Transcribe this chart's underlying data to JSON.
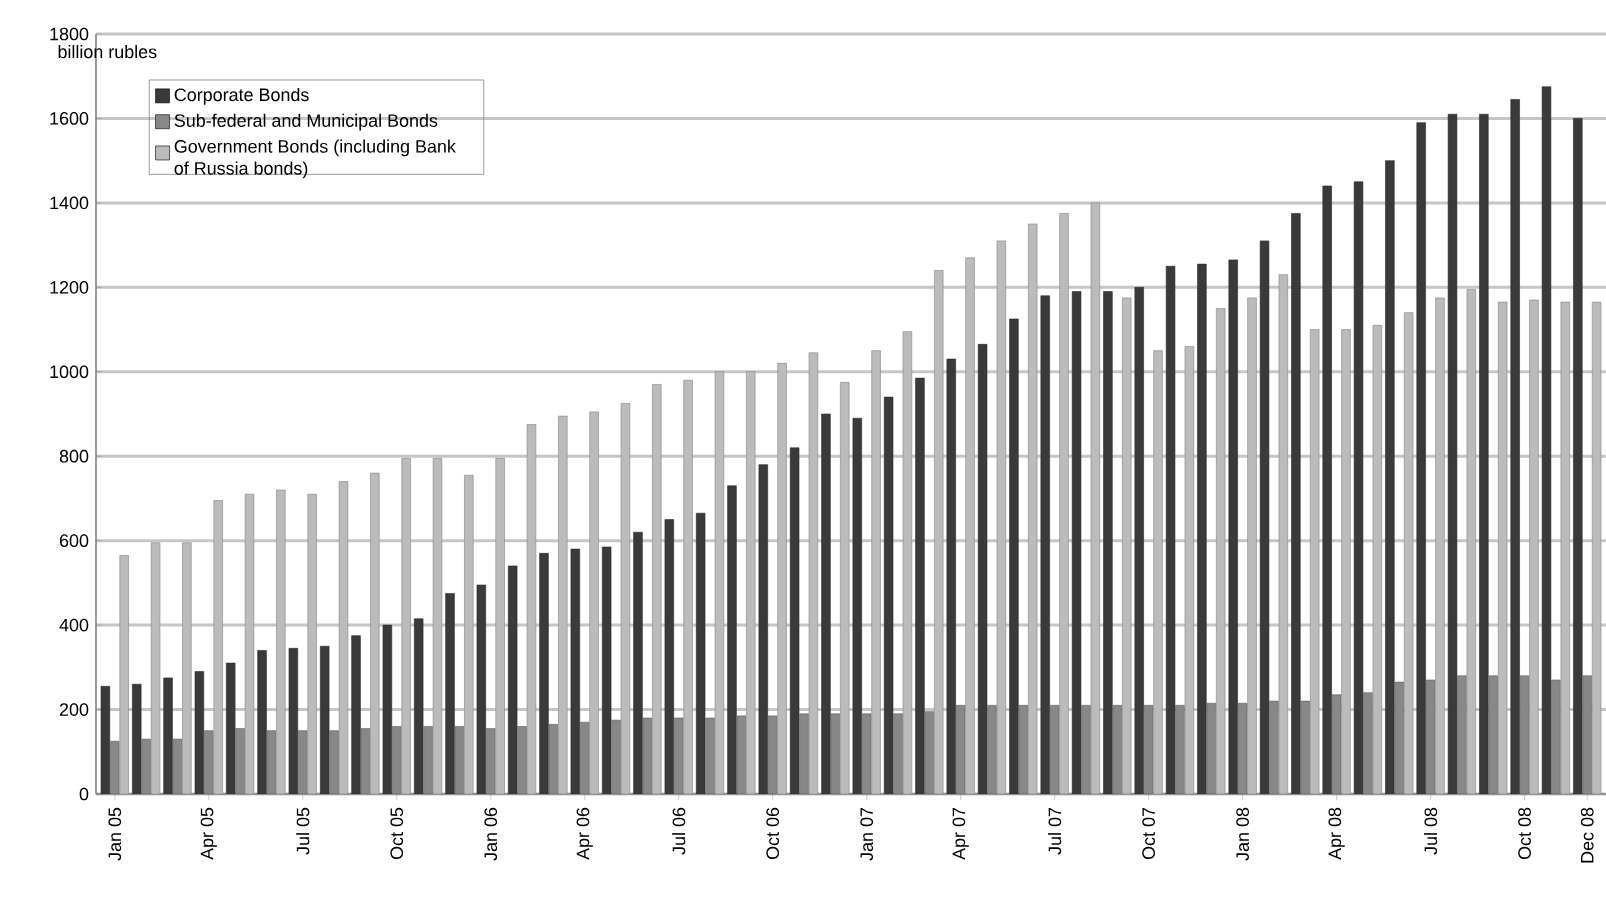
{
  "chart_data": {
    "type": "bar",
    "ylabel": "billion rubles",
    "categories": [
      "Jan 05",
      null,
      null,
      "Apr 05",
      null,
      null,
      "Jul 05",
      null,
      null,
      "Oct 05",
      null,
      null,
      "Jan 06",
      null,
      null,
      "Apr 06",
      null,
      null,
      "Jul 06",
      null,
      null,
      "Oct 06",
      null,
      null,
      "Jan 07",
      null,
      null,
      "Apr 07",
      null,
      null,
      "Jul 07",
      null,
      null,
      "Oct 07",
      null,
      null,
      "Jan 08",
      null,
      null,
      "Apr 08",
      null,
      null,
      "Jul 08",
      null,
      null,
      "Oct 08",
      null,
      "Dec 08"
    ],
    "series": [
      {
        "name": "Corporate Bonds",
        "color": "#3a3a3a",
        "values": [
          255,
          260,
          275,
          290,
          310,
          340,
          345,
          350,
          375,
          400,
          415,
          475,
          495,
          540,
          570,
          580,
          585,
          620,
          650,
          665,
          730,
          780,
          820,
          900,
          890,
          940,
          985,
          1030,
          1065,
          1125,
          1180,
          1190,
          1190,
          1200,
          1250,
          1255,
          1265,
          1310,
          1375,
          1440,
          1450,
          1500,
          1590,
          1610,
          1610,
          1645,
          1675,
          1600
        ]
      },
      {
        "name": "Sub-federal and Municipal Bonds",
        "color": "#888888",
        "values": [
          125,
          130,
          130,
          150,
          155,
          150,
          150,
          150,
          155,
          160,
          160,
          160,
          155,
          160,
          165,
          170,
          175,
          180,
          180,
          180,
          185,
          185,
          190,
          190,
          190,
          190,
          195,
          210,
          210,
          210,
          210,
          210,
          210,
          210,
          210,
          215,
          215,
          220,
          220,
          235,
          240,
          265,
          270,
          280,
          280,
          280,
          270,
          280
        ]
      },
      {
        "name": "Government Bonds (including Bank of Russia bonds)",
        "color": "#bbbbbb",
        "values": [
          565,
          595,
          595,
          695,
          710,
          720,
          710,
          740,
          760,
          795,
          795,
          755,
          795,
          875,
          895,
          905,
          925,
          970,
          980,
          1000,
          1000,
          1020,
          1045,
          975,
          1050,
          1095,
          1240,
          1270,
          1310,
          1350,
          1375,
          1400,
          1175,
          1050,
          1060,
          1150,
          1175,
          1230,
          1100,
          1100,
          1110,
          1140,
          1175,
          1195,
          1165,
          1170,
          1165,
          1165
        ]
      }
    ],
    "ylim": [
      0,
      1800
    ],
    "yticks": [
      0,
      200,
      400,
      600,
      800,
      1000,
      1200,
      1400,
      1600,
      1800
    ],
    "grid": "y",
    "legend": "top left"
  }
}
